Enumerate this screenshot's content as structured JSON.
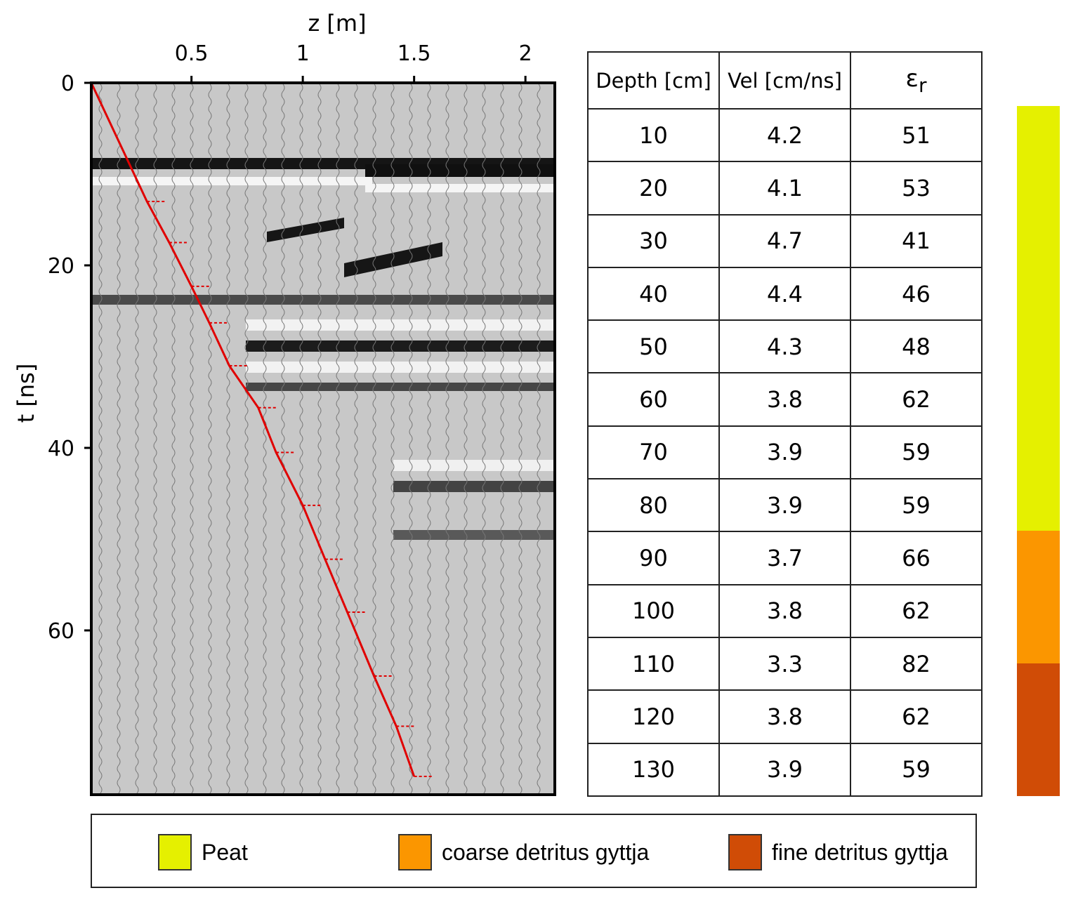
{
  "chart_data": {
    "type": "scatter",
    "xlabel": "z [m]",
    "ylabel": "t [ns]",
    "x_ticks": [
      "0.5",
      "1",
      "1.5",
      "2"
    ],
    "y_ticks": [
      "0",
      "20",
      "40",
      "60"
    ],
    "xlim": [
      0.05,
      2.2
    ],
    "ylim": [
      0,
      78
    ],
    "series": [
      {
        "color": "#e00000",
        "points": [
          {
            "x": 0.05,
            "y": 0
          },
          {
            "x": 0.3,
            "y": 13
          },
          {
            "x": 0.4,
            "y": 17.5
          },
          {
            "x": 0.5,
            "y": 22.3
          },
          {
            "x": 0.58,
            "y": 26.3
          },
          {
            "x": 0.67,
            "y": 31
          },
          {
            "x": 0.8,
            "y": 35.6
          },
          {
            "x": 0.88,
            "y": 40.5
          },
          {
            "x": 1.0,
            "y": 46.3
          },
          {
            "x": 1.1,
            "y": 52.2
          },
          {
            "x": 1.2,
            "y": 58
          },
          {
            "x": 1.32,
            "y": 65
          },
          {
            "x": 1.42,
            "y": 70.5
          },
          {
            "x": 1.5,
            "y": 76
          }
        ]
      }
    ]
  },
  "table": {
    "headers": [
      "Depth [cm]",
      "Vel [cm/ns]",
      "ε"
    ],
    "header_sub": "r",
    "rows": [
      [
        "10",
        "4.2",
        "51"
      ],
      [
        "20",
        "4.1",
        "53"
      ],
      [
        "30",
        "4.7",
        "41"
      ],
      [
        "40",
        "4.4",
        "46"
      ],
      [
        "50",
        "4.3",
        "48"
      ],
      [
        "60",
        "3.8",
        "62"
      ],
      [
        "70",
        "3.9",
        "59"
      ],
      [
        "80",
        "3.9",
        "59"
      ],
      [
        "90",
        "3.7",
        "66"
      ],
      [
        "100",
        "3.8",
        "62"
      ],
      [
        "110",
        "3.3",
        "82"
      ],
      [
        "120",
        "3.8",
        "62"
      ],
      [
        "130",
        "3.9",
        "59"
      ]
    ]
  },
  "strip": [
    {
      "layer": "Peat",
      "color": "#e5f000",
      "from_depth": 0,
      "to_depth": 80
    },
    {
      "layer": "coarse detritus gyttja",
      "color": "#fb9600",
      "from_depth": 80,
      "to_depth": 105
    },
    {
      "layer": "fine detritus gyttja",
      "color": "#d04c06",
      "from_depth": 105,
      "to_depth": 130
    }
  ],
  "legend": [
    {
      "label": "Peat",
      "color": "#e5f000"
    },
    {
      "label": "coarse detritus gyttja",
      "color": "#fb9600"
    },
    {
      "label": "fine detritus gyttja",
      "color": "#d04c06"
    }
  ]
}
